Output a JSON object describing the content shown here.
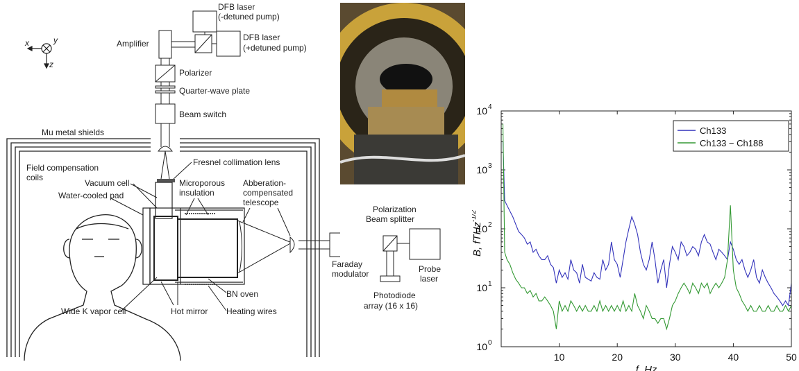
{
  "diagram": {
    "axes": {
      "x": "x",
      "y": "y",
      "z": "z"
    },
    "labels": {
      "dfb_minus_1": "DFB laser",
      "dfb_minus_2": "(-detuned pump)",
      "dfb_plus_1": "DFB laser",
      "dfb_plus_2": "(+detuned pump)",
      "amplifier": "Amplifier",
      "polarizer": "Polarizer",
      "quarter_wave": "Quarter-wave plate",
      "beam_switch": "Beam switch",
      "mu_metal": "Mu metal shields",
      "field_comp_1": "Field compensation",
      "field_comp_2": "coils",
      "fresnel": "Fresnel collimation lens",
      "vacuum_cell": "Vacuum cell",
      "microporous_1": "Microporous",
      "microporous_2": "insulation",
      "abberation_1": "Abberation-",
      "abberation_2": "compensated",
      "abberation_3": "telescope",
      "water_pad": "Water-cooled pad",
      "polarization_1": "Polarization",
      "polarization_2": "Beam splitter",
      "faraday_1": "Faraday",
      "faraday_2": "modulator",
      "probe_1": "Probe",
      "probe_2": "laser",
      "bn_oven": "BN oven",
      "heating_wires": "Heating wires",
      "hot_mirror": "Hot mirror",
      "wide_k": "Wide K vapor cell",
      "photodiode_1": "Photodiode",
      "photodiode_2": "array (16 x 16)"
    }
  },
  "photo": {
    "description_icon": "photo-icon"
  },
  "chart_data": {
    "type": "line",
    "scale": "log-y",
    "xlabel": "f, Hz",
    "ylabel": "B, fTHz",
    "ylabel_sup": "-1/2",
    "xlim": [
      0,
      50
    ],
    "ylim": [
      1,
      10000
    ],
    "xticks": [
      "10",
      "20",
      "30",
      "40",
      "50"
    ],
    "yticks": [
      "10",
      "10",
      "10",
      "10",
      "10"
    ],
    "ytick_exps": [
      "0",
      "1",
      "2",
      "3",
      "4"
    ],
    "legend_position": "top-right",
    "series": [
      {
        "name": "Ch133",
        "color": "#3333bb",
        "x": [
          0.3,
          0.6,
          1,
          1.5,
          2,
          2.5,
          3,
          3.5,
          4,
          4.5,
          5,
          5.5,
          6,
          6.5,
          7,
          7.5,
          8,
          8.5,
          9,
          9.5,
          10,
          10.5,
          11,
          11.5,
          12,
          12.5,
          13,
          13.5,
          14,
          14.5,
          15,
          15.5,
          16,
          16.5,
          17,
          17.5,
          18,
          18.5,
          19,
          19.5,
          20,
          20.5,
          21,
          21.5,
          22,
          22.5,
          23,
          23.5,
          24,
          24.5,
          25,
          25.5,
          26,
          26.5,
          27,
          27.5,
          28,
          28.5,
          29,
          29.5,
          30,
          30.5,
          31,
          31.5,
          32,
          32.5,
          33,
          33.5,
          34,
          34.5,
          35,
          35.5,
          36,
          36.5,
          37,
          37.5,
          38,
          38.5,
          39,
          39.5,
          40,
          40.5,
          41,
          41.5,
          42,
          42.5,
          43,
          43.5,
          44,
          44.5,
          45,
          45.5,
          46,
          46.5,
          47,
          47.5,
          48,
          48.5,
          49,
          49.5,
          50
        ],
        "values": [
          3000,
          300,
          250,
          200,
          160,
          120,
          90,
          80,
          70,
          55,
          60,
          40,
          45,
          35,
          30,
          30,
          35,
          25,
          22,
          12,
          20,
          15,
          18,
          14,
          30,
          20,
          18,
          12,
          25,
          15,
          14,
          13,
          18,
          15,
          14,
          30,
          20,
          25,
          60,
          30,
          25,
          15,
          30,
          60,
          100,
          160,
          120,
          80,
          40,
          25,
          20,
          30,
          60,
          30,
          12,
          20,
          30,
          10,
          25,
          50,
          40,
          30,
          60,
          50,
          35,
          40,
          50,
          45,
          35,
          60,
          80,
          60,
          55,
          40,
          30,
          45,
          40,
          35,
          30,
          60,
          45,
          30,
          25,
          30,
          20,
          15,
          20,
          30,
          15,
          12,
          20,
          15,
          12,
          10,
          8,
          7,
          6,
          5,
          6,
          5,
          12
        ]
      },
      {
        "name": "Ch133 − Ch188",
        "color": "#339933",
        "x": [
          0.3,
          0.6,
          1,
          1.5,
          2,
          2.5,
          3,
          3.5,
          4,
          4.5,
          5,
          5.5,
          6,
          6.5,
          7,
          7.5,
          8,
          8.5,
          9,
          9.5,
          10,
          10.5,
          11,
          11.5,
          12,
          12.5,
          13,
          13.5,
          14,
          14.5,
          15,
          15.5,
          16,
          16.5,
          17,
          17.5,
          18,
          18.5,
          19,
          19.5,
          20,
          20.5,
          21,
          21.5,
          22,
          22.5,
          23,
          23.5,
          24,
          24.5,
          25,
          25.5,
          26,
          26.5,
          27,
          27.5,
          28,
          28.5,
          29,
          29.5,
          30,
          30.5,
          31,
          31.5,
          32,
          32.5,
          33,
          33.5,
          34,
          34.5,
          35,
          35.5,
          36,
          36.5,
          37,
          37.5,
          38,
          38.5,
          39,
          39.5,
          40,
          40.5,
          41,
          41.5,
          42,
          42.5,
          43,
          43.5,
          44,
          44.5,
          45,
          45.5,
          46,
          46.5,
          47,
          47.5,
          48,
          48.5,
          49,
          49.5,
          50
        ],
        "values": [
          6000,
          40,
          30,
          25,
          18,
          14,
          12,
          10,
          10,
          8,
          9,
          7,
          8,
          6,
          6,
          7,
          6,
          5,
          4,
          2,
          6,
          4,
          5,
          4,
          6,
          5,
          4,
          5,
          4,
          5,
          4,
          4,
          5,
          4,
          6,
          4,
          5,
          4,
          5,
          4,
          5,
          4,
          6,
          4,
          5,
          4,
          8,
          5,
          4,
          3,
          5,
          4,
          3,
          3,
          2.5,
          3,
          3,
          2,
          3,
          5,
          6,
          8,
          10,
          12,
          10,
          8,
          12,
          10,
          8,
          12,
          10,
          12,
          8,
          10,
          12,
          10,
          12,
          15,
          30,
          250,
          20,
          10,
          8,
          6,
          5,
          4,
          5,
          4,
          4,
          5,
          4,
          4,
          5,
          4,
          4,
          5,
          4,
          4,
          5,
          4,
          5
        ]
      }
    ]
  }
}
